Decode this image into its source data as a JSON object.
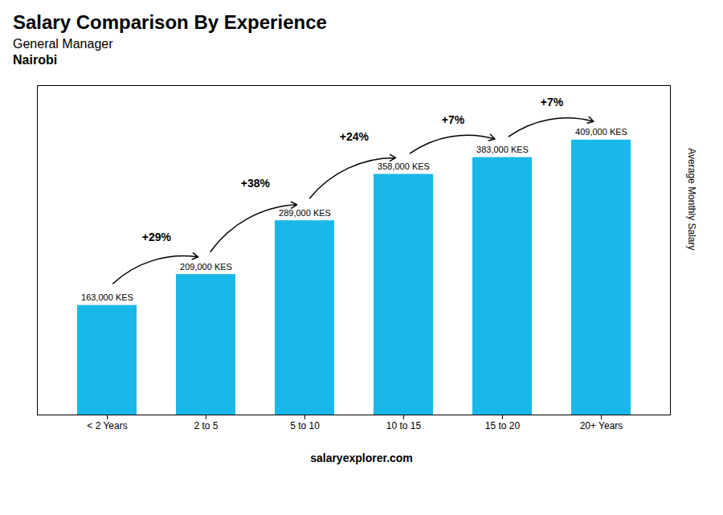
{
  "chart_data": {
    "type": "bar",
    "title": "Salary Comparison By Experience",
    "subtitle": [
      "General Manager",
      "Nairobi"
    ],
    "ylabel": "Average Monthly Salary",
    "caption": "salaryexplorer.com",
    "categories": [
      "< 2 Years",
      "2 to 5",
      "5 to 10",
      "10 to 15",
      "15 to 20",
      "20+ Years"
    ],
    "values": [
      163000,
      209000,
      289000,
      358000,
      383000,
      409000
    ],
    "value_labels": [
      "163,000 KES",
      "209,000 KES",
      "289,000 KES",
      "358,000 KES",
      "383,000 KES",
      "409,000 KES"
    ],
    "data_labels": true,
    "pct_changes": [
      null,
      "+29%",
      "+38%",
      "+24%",
      "+7%",
      "+7%"
    ],
    "color": "#1ab8e8",
    "ylim": [
      0,
      490000
    ],
    "tick_labels": "x",
    "grid": false
  }
}
